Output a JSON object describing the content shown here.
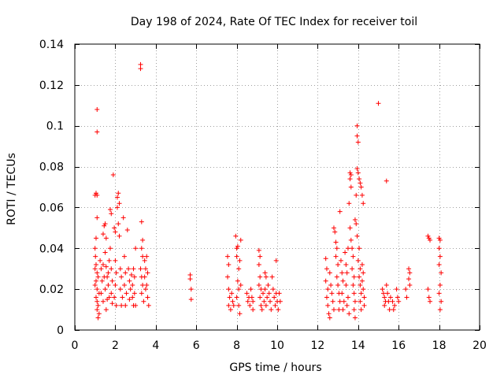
{
  "chart_data": {
    "type": "scatter",
    "title": "Day 198 of 2024, Rate Of TEC Index for receiver toil",
    "xlabel": "GPS time / hours",
    "ylabel": "ROTI / TECUs",
    "xlim": [
      0,
      20
    ],
    "ylim": [
      0,
      0.14
    ],
    "xticks": [
      0,
      2,
      4,
      6,
      8,
      10,
      12,
      14,
      16,
      18,
      20
    ],
    "yticks": [
      0,
      0.02,
      0.04,
      0.06,
      0.08,
      0.1,
      0.12,
      0.14
    ],
    "xtick_labels": [
      "0",
      "2",
      "4",
      "6",
      "8",
      "10",
      "12",
      "14",
      "16",
      "18",
      "20"
    ],
    "ytick_labels": [
      "0",
      "0.02",
      "0.04",
      "0.06",
      "0.08",
      "0.1",
      "0.12",
      "0.14"
    ],
    "grid": true,
    "marker": "+",
    "marker_color": "#ff0000",
    "series": [
      {
        "name": "ROTI",
        "points": [
          [
            1.0,
            0.066
          ],
          [
            1.05,
            0.067
          ],
          [
            1.1,
            0.108
          ],
          [
            1.1,
            0.097
          ],
          [
            1.1,
            0.066
          ],
          [
            1.1,
            0.055
          ],
          [
            1.05,
            0.045
          ],
          [
            1.0,
            0.04
          ],
          [
            1.02,
            0.036
          ],
          [
            1.05,
            0.032
          ],
          [
            1.0,
            0.03
          ],
          [
            1.1,
            0.028
          ],
          [
            1.15,
            0.026
          ],
          [
            1.05,
            0.024
          ],
          [
            1.0,
            0.022
          ],
          [
            1.1,
            0.02
          ],
          [
            1.2,
            0.018
          ],
          [
            1.05,
            0.016
          ],
          [
            1.1,
            0.014
          ],
          [
            1.15,
            0.012
          ],
          [
            1.1,
            0.01
          ],
          [
            1.2,
            0.008
          ],
          [
            1.15,
            0.006
          ],
          [
            1.25,
            0.034
          ],
          [
            1.3,
            0.03
          ],
          [
            1.35,
            0.024
          ],
          [
            1.3,
            0.018
          ],
          [
            1.4,
            0.032
          ],
          [
            1.45,
            0.026
          ],
          [
            1.4,
            0.014
          ],
          [
            1.4,
            0.047
          ],
          [
            1.45,
            0.051
          ],
          [
            1.5,
            0.052
          ],
          [
            1.55,
            0.045
          ],
          [
            1.5,
            0.038
          ],
          [
            1.55,
            0.031
          ],
          [
            1.6,
            0.026
          ],
          [
            1.5,
            0.02
          ],
          [
            1.6,
            0.015
          ],
          [
            1.55,
            0.01
          ],
          [
            1.65,
            0.028
          ],
          [
            1.7,
            0.034
          ],
          [
            1.65,
            0.022
          ],
          [
            1.7,
            0.016
          ],
          [
            1.75,
            0.059
          ],
          [
            1.8,
            0.057
          ],
          [
            1.75,
            0.04
          ],
          [
            1.8,
            0.03
          ],
          [
            1.85,
            0.024
          ],
          [
            1.8,
            0.018
          ],
          [
            1.85,
            0.013
          ],
          [
            1.9,
            0.076
          ],
          [
            1.95,
            0.05
          ],
          [
            2.0,
            0.048
          ],
          [
            2.0,
            0.034
          ],
          [
            2.05,
            0.028
          ],
          [
            2.0,
            0.022
          ],
          [
            1.95,
            0.016
          ],
          [
            2.05,
            0.012
          ],
          [
            2.1,
            0.065
          ],
          [
            2.15,
            0.067
          ],
          [
            2.1,
            0.06
          ],
          [
            2.15,
            0.052
          ],
          [
            2.2,
            0.062
          ],
          [
            2.2,
            0.046
          ],
          [
            2.25,
            0.03
          ],
          [
            2.3,
            0.026
          ],
          [
            2.25,
            0.02
          ],
          [
            2.35,
            0.016
          ],
          [
            2.3,
            0.012
          ],
          [
            2.4,
            0.055
          ],
          [
            2.45,
            0.036
          ],
          [
            2.5,
            0.028
          ],
          [
            2.45,
            0.022
          ],
          [
            2.55,
            0.018
          ],
          [
            2.5,
            0.012
          ],
          [
            2.6,
            0.049
          ],
          [
            2.65,
            0.03
          ],
          [
            2.7,
            0.024
          ],
          [
            2.75,
            0.02
          ],
          [
            2.7,
            0.015
          ],
          [
            2.8,
            0.027
          ],
          [
            2.85,
            0.022
          ],
          [
            2.9,
            0.03
          ],
          [
            2.85,
            0.016
          ],
          [
            2.9,
            0.012
          ],
          [
            2.95,
            0.026
          ],
          [
            3.0,
            0.04
          ],
          [
            2.95,
            0.018
          ],
          [
            3.0,
            0.012
          ],
          [
            3.25,
            0.13
          ],
          [
            3.25,
            0.128
          ],
          [
            3.3,
            0.053
          ],
          [
            3.35,
            0.044
          ],
          [
            3.3,
            0.04
          ],
          [
            3.35,
            0.036
          ],
          [
            3.25,
            0.03
          ],
          [
            3.3,
            0.026
          ],
          [
            3.35,
            0.022
          ],
          [
            3.3,
            0.018
          ],
          [
            3.4,
            0.014
          ],
          [
            3.45,
            0.034
          ],
          [
            3.5,
            0.03
          ],
          [
            3.45,
            0.026
          ],
          [
            3.5,
            0.02
          ],
          [
            3.55,
            0.036
          ],
          [
            3.6,
            0.028
          ],
          [
            3.55,
            0.022
          ],
          [
            3.6,
            0.016
          ],
          [
            3.65,
            0.012
          ],
          [
            5.7,
            0.027
          ],
          [
            5.7,
            0.025
          ],
          [
            5.75,
            0.02
          ],
          [
            5.75,
            0.015
          ],
          [
            7.55,
            0.036
          ],
          [
            7.6,
            0.032
          ],
          [
            7.55,
            0.026
          ],
          [
            7.6,
            0.02
          ],
          [
            7.65,
            0.016
          ],
          [
            7.6,
            0.012
          ],
          [
            7.7,
            0.01
          ],
          [
            7.75,
            0.018
          ],
          [
            7.8,
            0.014
          ],
          [
            7.85,
            0.012
          ],
          [
            7.95,
            0.046
          ],
          [
            8.0,
            0.04
          ],
          [
            8.05,
            0.041
          ],
          [
            8.0,
            0.036
          ],
          [
            8.1,
            0.03
          ],
          [
            8.05,
            0.024
          ],
          [
            8.1,
            0.02
          ],
          [
            8.0,
            0.016
          ],
          [
            8.1,
            0.012
          ],
          [
            8.15,
            0.008
          ],
          [
            8.2,
            0.044
          ],
          [
            8.15,
            0.034
          ],
          [
            8.2,
            0.022
          ],
          [
            8.5,
            0.018
          ],
          [
            8.55,
            0.014
          ],
          [
            8.6,
            0.016
          ],
          [
            8.65,
            0.012
          ],
          [
            8.7,
            0.02
          ],
          [
            8.75,
            0.016
          ],
          [
            8.8,
            0.01
          ],
          [
            8.8,
            0.014
          ],
          [
            9.1,
            0.039
          ],
          [
            9.15,
            0.036
          ],
          [
            9.1,
            0.032
          ],
          [
            9.15,
            0.026
          ],
          [
            9.1,
            0.022
          ],
          [
            9.2,
            0.02
          ],
          [
            9.15,
            0.016
          ],
          [
            9.2,
            0.012
          ],
          [
            9.25,
            0.01
          ],
          [
            9.3,
            0.018
          ],
          [
            9.35,
            0.014
          ],
          [
            9.4,
            0.028
          ],
          [
            9.45,
            0.026
          ],
          [
            9.4,
            0.02
          ],
          [
            9.5,
            0.016
          ],
          [
            9.45,
            0.012
          ],
          [
            9.55,
            0.022
          ],
          [
            9.6,
            0.018
          ],
          [
            9.65,
            0.014
          ],
          [
            9.7,
            0.01
          ],
          [
            9.75,
            0.026
          ],
          [
            9.8,
            0.02
          ],
          [
            9.85,
            0.016
          ],
          [
            9.9,
            0.012
          ],
          [
            9.95,
            0.034
          ],
          [
            9.95,
            0.018
          ],
          [
            10.0,
            0.014
          ],
          [
            10.05,
            0.01
          ],
          [
            10.1,
            0.018
          ],
          [
            10.15,
            0.014
          ],
          [
            12.4,
            0.035
          ],
          [
            12.45,
            0.03
          ],
          [
            12.4,
            0.024
          ],
          [
            12.5,
            0.02
          ],
          [
            12.45,
            0.016
          ],
          [
            12.5,
            0.012
          ],
          [
            12.55,
            0.008
          ],
          [
            12.6,
            0.006
          ],
          [
            12.6,
            0.028
          ],
          [
            12.65,
            0.022
          ],
          [
            12.7,
            0.018
          ],
          [
            12.75,
            0.014
          ],
          [
            12.8,
            0.01
          ],
          [
            12.8,
            0.05
          ],
          [
            12.85,
            0.048
          ],
          [
            12.9,
            0.043
          ],
          [
            12.95,
            0.04
          ],
          [
            12.9,
            0.036
          ],
          [
            13.0,
            0.032
          ],
          [
            12.95,
            0.026
          ],
          [
            13.0,
            0.022
          ],
          [
            13.05,
            0.018
          ],
          [
            13.1,
            0.014
          ],
          [
            13.05,
            0.01
          ],
          [
            13.1,
            0.058
          ],
          [
            13.15,
            0.034
          ],
          [
            13.2,
            0.028
          ],
          [
            13.25,
            0.024
          ],
          [
            13.2,
            0.018
          ],
          [
            13.3,
            0.014
          ],
          [
            13.25,
            0.01
          ],
          [
            13.35,
            0.038
          ],
          [
            13.4,
            0.032
          ],
          [
            13.45,
            0.028
          ],
          [
            13.4,
            0.022
          ],
          [
            13.5,
            0.016
          ],
          [
            13.45,
            0.012
          ],
          [
            13.55,
            0.008
          ],
          [
            13.5,
            0.04
          ],
          [
            13.55,
            0.062
          ],
          [
            13.6,
            0.077
          ],
          [
            13.65,
            0.076
          ],
          [
            13.6,
            0.074
          ],
          [
            13.65,
            0.07
          ],
          [
            13.6,
            0.05
          ],
          [
            13.65,
            0.044
          ],
          [
            13.7,
            0.04
          ],
          [
            13.75,
            0.036
          ],
          [
            13.7,
            0.03
          ],
          [
            13.8,
            0.026
          ],
          [
            13.75,
            0.022
          ],
          [
            13.8,
            0.018
          ],
          [
            13.85,
            0.014
          ],
          [
            13.8,
            0.01
          ],
          [
            13.85,
            0.006
          ],
          [
            13.85,
            0.054
          ],
          [
            13.9,
            0.052
          ],
          [
            13.95,
            0.046
          ],
          [
            13.9,
            0.066
          ],
          [
            13.95,
            0.079
          ],
          [
            14.0,
            0.077
          ],
          [
            13.95,
            0.1
          ],
          [
            13.95,
            0.095
          ],
          [
            14.0,
            0.092
          ],
          [
            14.05,
            0.04
          ],
          [
            14.0,
            0.034
          ],
          [
            14.1,
            0.03
          ],
          [
            14.05,
            0.026
          ],
          [
            14.1,
            0.022
          ],
          [
            14.15,
            0.018
          ],
          [
            14.1,
            0.014
          ],
          [
            14.15,
            0.01
          ],
          [
            14.2,
            0.032
          ],
          [
            14.25,
            0.028
          ],
          [
            14.2,
            0.024
          ],
          [
            14.25,
            0.02
          ],
          [
            14.3,
            0.016
          ],
          [
            14.3,
            0.012
          ],
          [
            14.05,
            0.074
          ],
          [
            14.1,
            0.072
          ],
          [
            14.15,
            0.07
          ],
          [
            14.2,
            0.066
          ],
          [
            14.25,
            0.062
          ],
          [
            15.0,
            0.111
          ],
          [
            15.4,
            0.073
          ],
          [
            15.2,
            0.02
          ],
          [
            15.25,
            0.018
          ],
          [
            15.3,
            0.016
          ],
          [
            15.35,
            0.014
          ],
          [
            15.3,
            0.012
          ],
          [
            15.4,
            0.022
          ],
          [
            15.45,
            0.018
          ],
          [
            15.5,
            0.014
          ],
          [
            15.55,
            0.01
          ],
          [
            15.6,
            0.016
          ],
          [
            15.7,
            0.014
          ],
          [
            15.75,
            0.01
          ],
          [
            15.8,
            0.012
          ],
          [
            15.9,
            0.02
          ],
          [
            15.95,
            0.016
          ],
          [
            16.0,
            0.014
          ],
          [
            16.35,
            0.02
          ],
          [
            16.4,
            0.016
          ],
          [
            16.5,
            0.03
          ],
          [
            16.55,
            0.028
          ],
          [
            16.5,
            0.025
          ],
          [
            16.55,
            0.022
          ],
          [
            17.45,
            0.046
          ],
          [
            17.5,
            0.045
          ],
          [
            17.55,
            0.044
          ],
          [
            17.45,
            0.02
          ],
          [
            17.5,
            0.016
          ],
          [
            17.55,
            0.014
          ],
          [
            18.0,
            0.045
          ],
          [
            18.05,
            0.044
          ],
          [
            18.0,
            0.04
          ],
          [
            18.05,
            0.036
          ],
          [
            18.0,
            0.032
          ],
          [
            18.1,
            0.028
          ],
          [
            18.05,
            0.022
          ],
          [
            18.0,
            0.018
          ],
          [
            18.1,
            0.014
          ],
          [
            18.05,
            0.01
          ]
        ]
      }
    ]
  }
}
